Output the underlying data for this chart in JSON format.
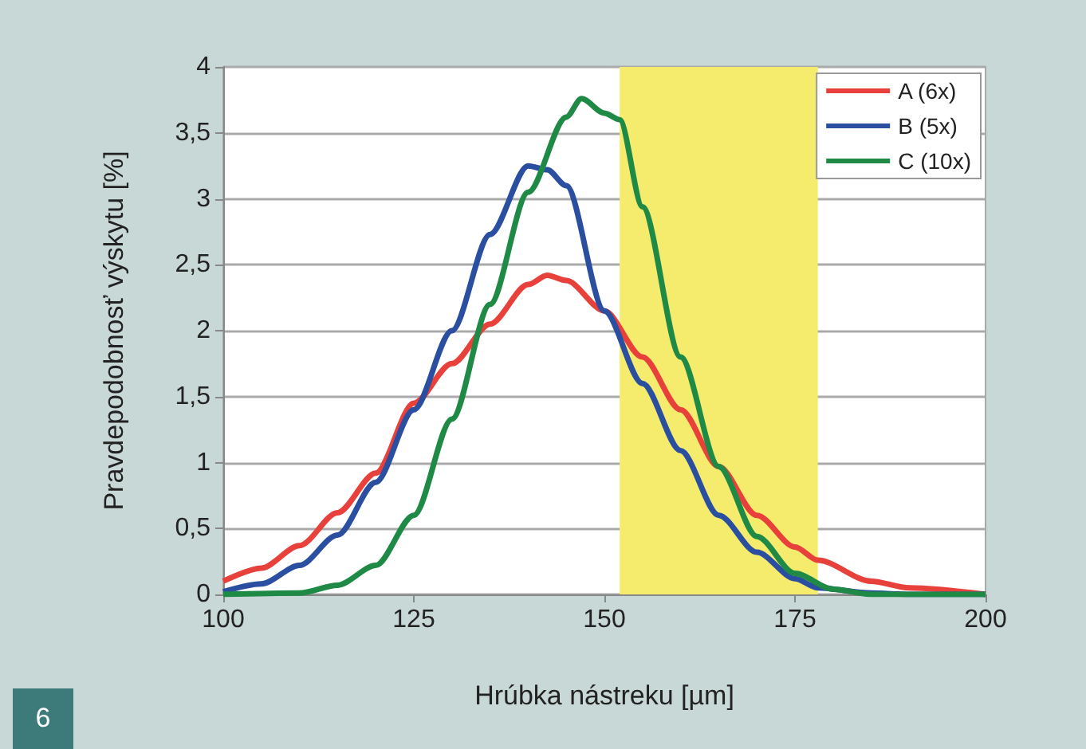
{
  "chart_data": {
    "type": "line",
    "xlabel": "Hrúbka nástreku [µm]",
    "ylabel": "Pravdepodobnosť výskytu [%]",
    "annotations": [
      "6"
    ],
    "xlim": [
      100,
      200
    ],
    "xticks": [
      100,
      125,
      150,
      175,
      200
    ],
    "ylim": [
      0,
      4
    ],
    "yticks": [
      0,
      {
        "value": 0.5,
        "label": "0,5"
      },
      1,
      {
        "value": 1.5,
        "label": "1,5"
      },
      2,
      {
        "value": 2.5,
        "label": "2,5"
      },
      3,
      {
        "value": 3.5,
        "label": "3,5"
      },
      4
    ],
    "grid": "y",
    "legend": "top right",
    "marker": "none",
    "line_style": "solid",
    "bands": [
      {
        "axis": "x",
        "from": 152,
        "to": 178,
        "color": "#f5ec6e"
      }
    ],
    "x": [
      100,
      105,
      110,
      115,
      120,
      125,
      130,
      135,
      140,
      142.5,
      145,
      150,
      155,
      160,
      165,
      170,
      175,
      178,
      185,
      190,
      200
    ],
    "series": [
      {
        "name": "A (6x)",
        "color": "#e8403a",
        "values": [
          0.1,
          0.2,
          0.37,
          0.62,
          0.92,
          1.45,
          1.75,
          2.05,
          2.35,
          2.42,
          2.38,
          2.15,
          1.8,
          1.4,
          0.97,
          0.6,
          0.36,
          0.26,
          0.1,
          0.05,
          0
        ]
      },
      {
        "name": "B (5x)",
        "color": "#2a4fa0",
        "values": [
          0.02,
          0.08,
          0.22,
          0.45,
          0.85,
          1.4,
          2.0,
          2.73,
          3.25,
          3.22,
          3.1,
          2.15,
          1.6,
          1.09,
          0.6,
          0.32,
          0.12,
          0.05,
          0.01,
          0,
          0
        ]
      },
      {
        "name": "C (10x)",
        "color": "#1f8a45",
        "x": [
          100,
          110,
          115,
          120,
          125,
          130,
          135,
          140,
          145,
          147,
          150,
          152,
          155,
          160,
          165,
          170,
          175,
          180,
          185,
          200
        ],
        "values": [
          0,
          0.01,
          0.07,
          0.22,
          0.6,
          1.33,
          2.2,
          3.05,
          3.62,
          3.76,
          3.65,
          3.6,
          2.94,
          1.8,
          0.97,
          0.44,
          0.16,
          0.04,
          0,
          0
        ]
      }
    ]
  }
}
